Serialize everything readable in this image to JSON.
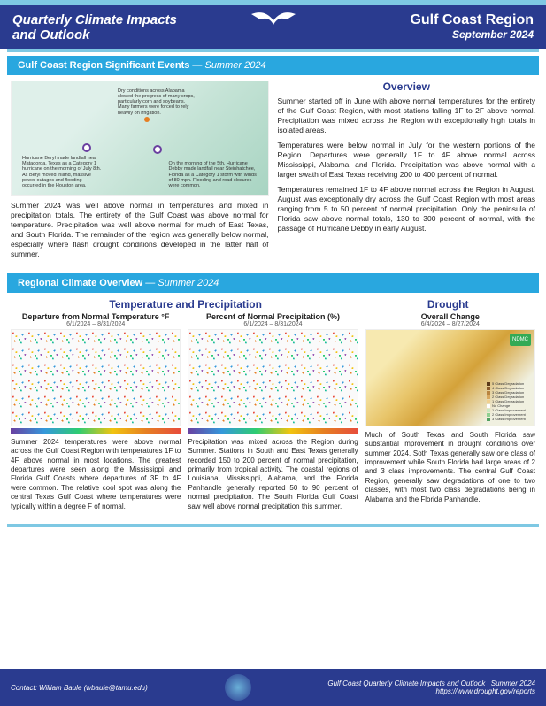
{
  "header": {
    "title_l1": "Quarterly Climate Impacts",
    "title_l2": "and Outlook",
    "region": "Gulf Coast Region",
    "date": "September 2024"
  },
  "section1": {
    "bar_label": "Gulf Coast Region Significant Events",
    "bar_em": "— Summer 2024",
    "map_notes": {
      "a": "Dry conditions across Alabama slowed the progress of many crops, particularly corn and soybeans. Many farmers were forced to rely heavily on irrigation.",
      "b": "Hurricane Beryl made landfall near Matagorda, Texas as a Category 1 hurricane on the morning of July 8th. As Beryl moved inland, massive power outages and flooding occurred in the Houston area.",
      "c": "On the morning of the 5th, Hurricane Debby made landfall near Steinhatchee, Florida as a Category 1 storm with winds of 80 mph. Flooding and road closures were common."
    },
    "summary": "Summer 2024 was well above normal in temperatures and mixed in precipitation totals. The entirety of the Gulf Coast was above normal for temperature. Precipitation was well above normal for much of East Texas, and South Florida. The remainder of the region was generally below normal, especially where flash drought conditions developed in the latter half of summer.",
    "overview_h": "Overview",
    "overview_p1": "Summer started off in June with above normal temperatures for the entirety of the Gulf Coast Region, with most stations falling 1F to 2F above normal. Precipitation was mixed across the Region with exceptionally high totals in isolated areas.",
    "overview_p2": "Temperatures were below normal in July for the western portions of the Region. Departures were generally 1F to 4F above normal across Mississippi, Alabama, and Florida. Precipitation was above normal with a larger swath of East Texas receiving 200 to 400 percent of normal.",
    "overview_p3": "Temperatures remained 1F to 4F above normal across the Region in August. August was exceptionally dry across the Gulf Coast Region with most areas ranging from 5 to 50 percent of normal precipitation. Only the peninsula of Florida saw above normal totals, 130 to 300 percent of normal, with the passage of Hurricane Debby in early August."
  },
  "section2": {
    "bar_label": "Regional Climate Overview",
    "bar_em": "— Summer 2024",
    "temp_precip_h": "Temperature and Precipitation",
    "drought_h": "Drought",
    "charts": [
      {
        "title": "Departure from Normal Temperature °F",
        "sub": "6/1/2024 – 8/31/2024",
        "para": "Summer 2024 temperatures were above normal across the Gulf Coast Region with temperatures 1F to 4F above normal in most locations. The greatest departures were seen along the Mississippi and Florida Gulf Coasts where departures of 3F to 4F were common. The relative cool spot was along the central Texas Gulf Coast where temperatures were typically within a degree F of normal."
      },
      {
        "title": "Percent of Normal Precipitation (%)",
        "sub": "6/1/2024 – 8/31/2024",
        "para": "Precipitation was mixed across the Region during Summer. Stations in South and East Texas generally recorded 150 to 200 percent of normal precipitation, primarily from tropical activity. The coastal regions of Louisiana, Mississippi, Alabama, and the Florida Panhandle generally reported 50 to 90 percent of normal precipitation. The South Florida Gulf Coast saw well above normal precipitation this summer."
      },
      {
        "title": "Overall Change",
        "sub": "6/4/2024 – 8/27/2024",
        "para": "Much of South Texas and South Florida saw substantial improvement in drought conditions over summer 2024. Soth Texas generally saw one class of improvement while South Florida had large areas of 2 and 3 class improvements. The central Gulf Coast Region, generally saw degradations of one to two classes, with most two class degradations being in Alabama and the Florida Panhandle."
      }
    ],
    "legend": [
      "5 Class Degradation",
      "4 Class Degradation",
      "3 Class Degradation",
      "2 Class Degradation",
      "1 Class Degradation",
      "No Change",
      "1 Class Improvement",
      "2 Class Improvement",
      "3 Class Improvement"
    ],
    "legend_colors": [
      "#5a3a1a",
      "#8a5a2a",
      "#b88440",
      "#d8a860",
      "#f0d090",
      "#ffffff",
      "#c8e8c0",
      "#90d090",
      "#50a060"
    ],
    "badge": "NDMC"
  },
  "footer": {
    "contact": "Contact: William Baule (wbaule@tamu.edu)",
    "right1": "Gulf Coast Quarterly Climate Impacts and Outlook | Summer 2024",
    "right2": "https://www.drought.gov/reports"
  }
}
